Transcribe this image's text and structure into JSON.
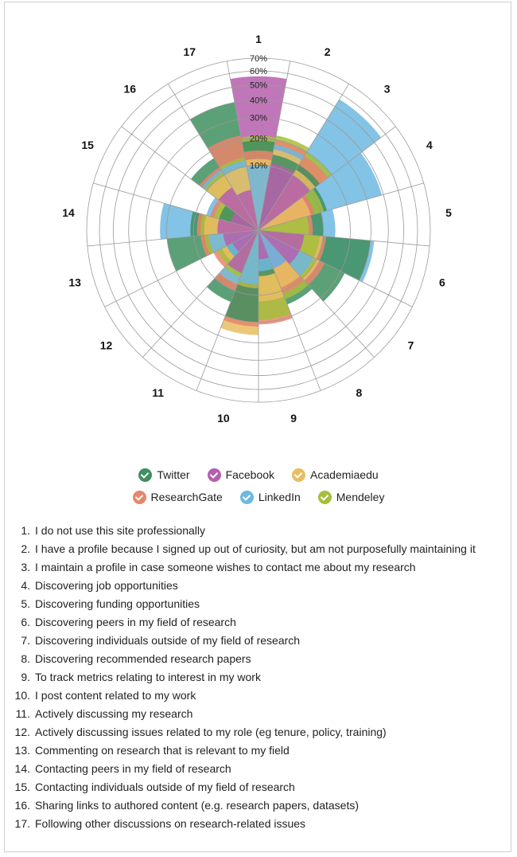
{
  "chart_data": {
    "type": "polar-area",
    "categories": [
      "1",
      "2",
      "3",
      "4",
      "5",
      "6",
      "7",
      "8",
      "9",
      "10",
      "11",
      "12",
      "13",
      "14",
      "15",
      "16",
      "17"
    ],
    "radial_ticks": [
      "10%",
      "20%",
      "30%",
      "40%",
      "50%",
      "60%",
      "70%"
    ],
    "rmax": 70,
    "series": [
      {
        "name": "Twitter",
        "color": "#3f8f5f",
        "values": [
          19,
          14,
          14,
          12,
          10,
          30,
          22,
          15,
          5,
          20,
          14,
          3,
          20,
          11,
          4,
          17,
          40
        ]
      },
      {
        "name": "Facebook",
        "color": "#b55fae",
        "values": [
          56,
          11,
          10,
          8,
          6,
          5,
          5,
          4,
          2,
          8,
          5,
          2,
          3,
          4,
          2,
          6,
          4
        ]
      },
      {
        "name": "Academiaedu",
        "color": "#e9bd61",
        "values": [
          12,
          16,
          12,
          7,
          6,
          10,
          11,
          9,
          12,
          26,
          8,
          4,
          6,
          7,
          5,
          10,
          10
        ]
      },
      {
        "name": "ResearchGate",
        "color": "#e9856b",
        "values": [
          15,
          20,
          18,
          8,
          7,
          11,
          13,
          11,
          21,
          22,
          10,
          6,
          8,
          9,
          6,
          13,
          22
        ]
      },
      {
        "name": "LinkedIn",
        "color": "#6db8e0",
        "values": [
          10,
          18,
          56,
          39,
          14,
          32,
          9,
          4,
          4,
          7,
          8,
          3,
          6,
          23,
          7,
          12,
          12
        ]
      },
      {
        "name": "Mendeley",
        "color": "#a4bf3c",
        "values": [
          21,
          22,
          20,
          11,
          6,
          9,
          10,
          13,
          19,
          8,
          6,
          5,
          7,
          8,
          5,
          11,
          13
        ]
      }
    ]
  },
  "notes": [
    {
      "num": "1.",
      "text": "I do not use this site professionally"
    },
    {
      "num": "2.",
      "text": "I have a profile because I signed up out of curiosity, but am not purposefully maintaining it"
    },
    {
      "num": "3.",
      "text": "I maintain a profile in case someone wishes to contact me about my research"
    },
    {
      "num": "4.",
      "text": "Discovering job opportunities"
    },
    {
      "num": "5.",
      "text": "Discovering funding opportunities"
    },
    {
      "num": "6.",
      "text": "Discovering peers in my field of research"
    },
    {
      "num": "7.",
      "text": "Discovering individuals outside of my field of research"
    },
    {
      "num": "8.",
      "text": "Discovering recommended research papers"
    },
    {
      "num": "9.",
      "text": "To track metrics relating to interest in my work"
    },
    {
      "num": "10.",
      "text": "I post content related to my work"
    },
    {
      "num": "11.",
      "text": "Actively discussing my research"
    },
    {
      "num": "12.",
      "text": "Actively discussing issues related to my role (eg tenure, policy, training)"
    },
    {
      "num": "13.",
      "text": "Commenting on research that is relevant to my field"
    },
    {
      "num": "14.",
      "text": "Contacting peers in my field of research"
    },
    {
      "num": "15.",
      "text": "Contacting individuals outside of my field of research"
    },
    {
      "num": "16.",
      "text": "Sharing links to authored content (e.g. research papers, datasets)"
    },
    {
      "num": "17.",
      "text": "Following other discussions on research-related issues"
    }
  ]
}
